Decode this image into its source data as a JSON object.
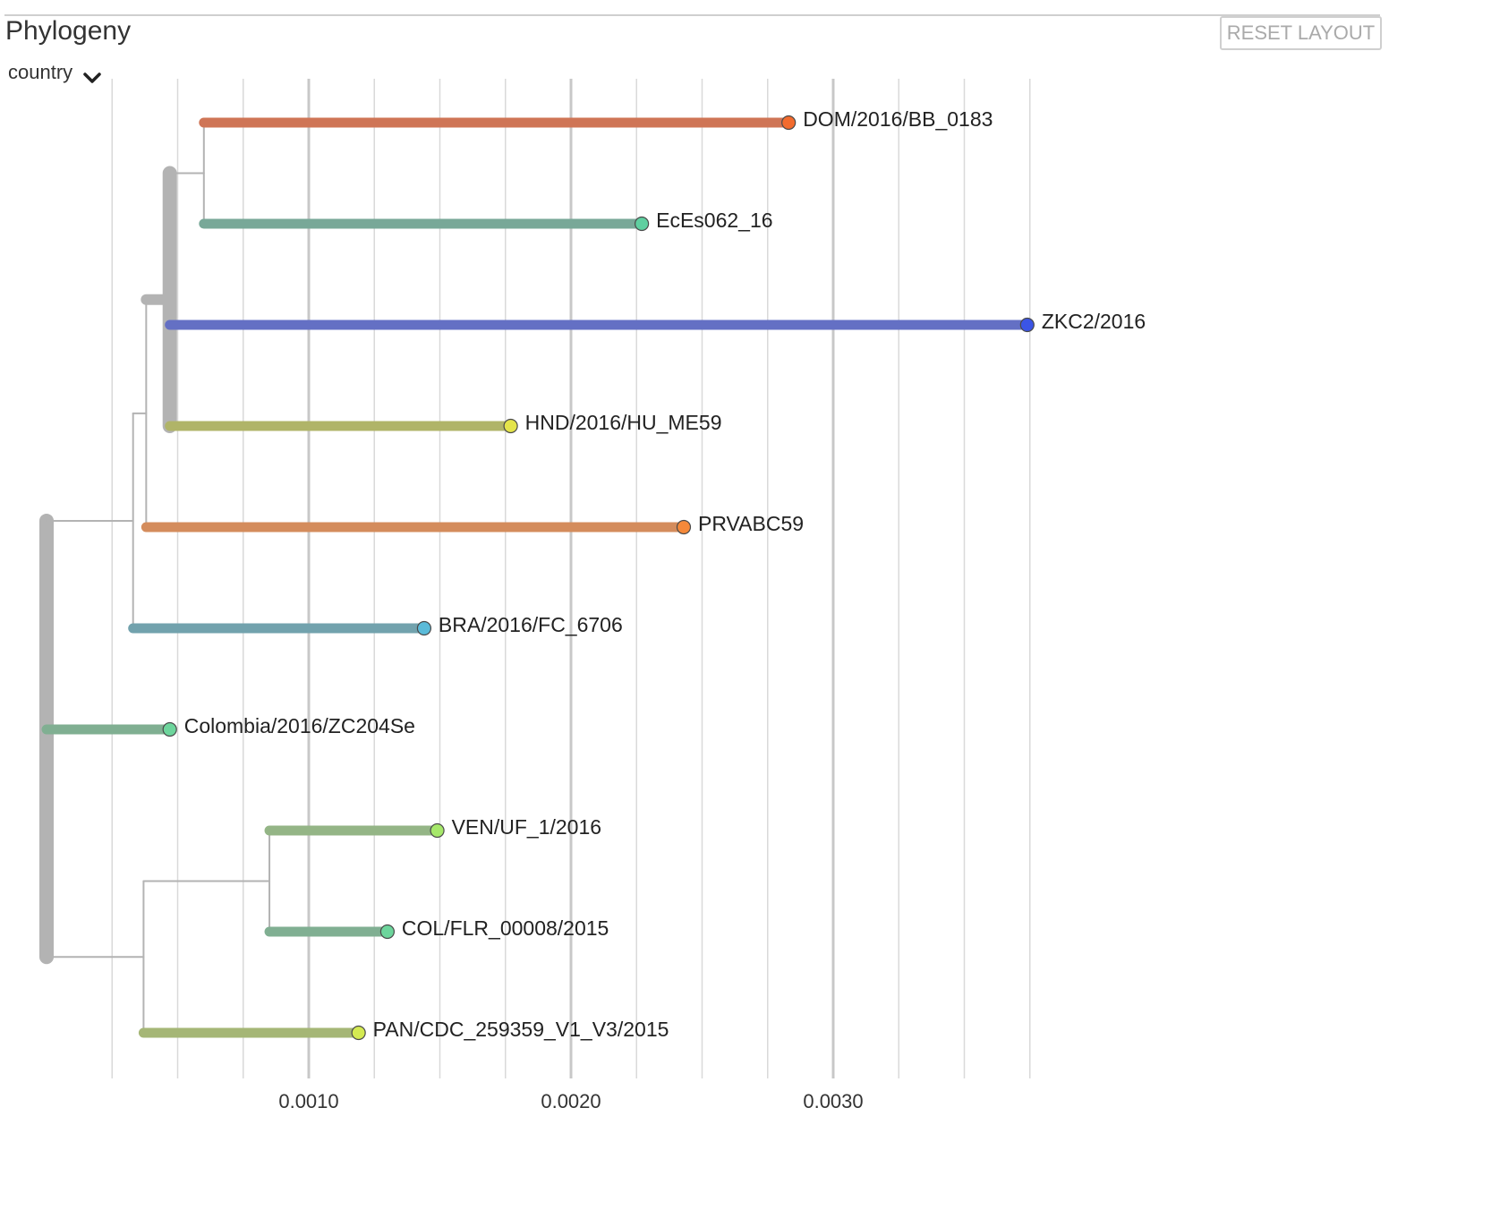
{
  "header": {
    "title": "Phylogeny",
    "reset_label": "RESET LAYOUT",
    "color_by": "country"
  },
  "axis": {
    "ticks": [
      {
        "value": 0.001,
        "label": "0.0010"
      },
      {
        "value": 0.002,
        "label": "0.0020"
      },
      {
        "value": 0.003,
        "label": "0.0030"
      }
    ]
  },
  "tree": {
    "root_div": 0.0,
    "nodes": [
      {
        "id": "n0",
        "div": 0.0
      },
      {
        "id": "n1",
        "parent": "n0",
        "div": 0.00033
      },
      {
        "id": "n2",
        "parent": "n1",
        "div": 0.00038
      },
      {
        "id": "n3",
        "parent": "n2",
        "div": 0.00047
      },
      {
        "id": "n4",
        "parent": "n3",
        "div": 0.0006
      },
      {
        "id": "n5",
        "parent": "n0",
        "div": 0.00037
      },
      {
        "id": "n6",
        "parent": "n5",
        "div": 0.00085
      }
    ],
    "tips": [
      {
        "name": "DOM/2016/BB_0183",
        "parent": "n4",
        "div": 0.00283,
        "color": "#f26b2e",
        "branch_color": "#cf7556"
      },
      {
        "name": "EcEs062_16",
        "parent": "n4",
        "div": 0.00227,
        "color": "#5fcfa0",
        "branch_color": "#78a898"
      },
      {
        "name": "ZKC2/2016",
        "parent": "n3",
        "div": 0.00374,
        "color": "#3b55e6",
        "branch_color": "#6470c4"
      },
      {
        "name": "HND/2016/HU_ME59",
        "parent": "n3",
        "div": 0.00177,
        "color": "#e4e44a",
        "branch_color": "#b0b468"
      },
      {
        "name": "PRVABC59",
        "parent": "n2",
        "div": 0.00243,
        "color": "#f5893a",
        "branch_color": "#d48c5c"
      },
      {
        "name": "BRA/2016/FC_6706",
        "parent": "n1",
        "div": 0.00144,
        "color": "#5bbbd9",
        "branch_color": "#72a2ad"
      },
      {
        "name": "Colombia/2016/ZC204Se",
        "parent": "n0",
        "div": 0.00047,
        "color": "#6dd59c",
        "branch_color": "#80af92"
      },
      {
        "name": "VEN/UF_1/2016",
        "parent": "n6",
        "div": 0.00149,
        "color": "#a6e86a",
        "branch_color": "#94b586"
      },
      {
        "name": "COL/FLR_00008/2015",
        "parent": "n6",
        "div": 0.0013,
        "color": "#6dd59c",
        "branch_color": "#80af92"
      },
      {
        "name": "PAN/CDC_259359_V1_V3/2015",
        "parent": "n5",
        "div": 0.00119,
        "color": "#d4ea52",
        "branch_color": "#a5b676"
      }
    ]
  },
  "colors": {
    "internal_branch": "#b3b3b3",
    "grid": "#d9d9d9"
  }
}
